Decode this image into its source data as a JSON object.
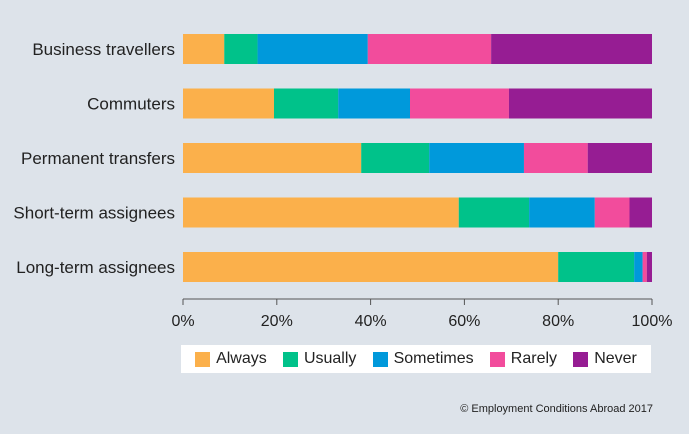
{
  "chart_data": {
    "type": "bar",
    "orientation": "horizontal",
    "stacked": true,
    "categories": [
      "Business travellers",
      "Commuters",
      "Permanent transfers",
      "Short-term assignees",
      "Long-term assignees"
    ],
    "series": [
      {
        "name": "Always",
        "color": "#fbb04b",
        "values": [
          8.8,
          19.4,
          38.0,
          58.8,
          80.0
        ]
      },
      {
        "name": "Usually",
        "color": "#00c28a",
        "values": [
          7.1,
          13.7,
          14.5,
          15.0,
          16.2
        ]
      },
      {
        "name": "Sometimes",
        "color": "#0099db",
        "values": [
          23.5,
          15.3,
          20.2,
          14.0,
          1.8
        ]
      },
      {
        "name": "Rarely",
        "color": "#f24c9c",
        "values": [
          26.3,
          21.1,
          13.6,
          7.4,
          0.9
        ]
      },
      {
        "name": "Never",
        "color": "#961d93",
        "values": [
          34.3,
          30.5,
          13.7,
          4.8,
          1.1
        ]
      }
    ],
    "xlim": [
      0,
      100
    ],
    "xticks": [
      "0%",
      "20%",
      "40%",
      "60%",
      "80%",
      "100%"
    ],
    "legend_position": "bottom",
    "grid": false
  },
  "credit": "© Employment Conditions Abroad 2017"
}
